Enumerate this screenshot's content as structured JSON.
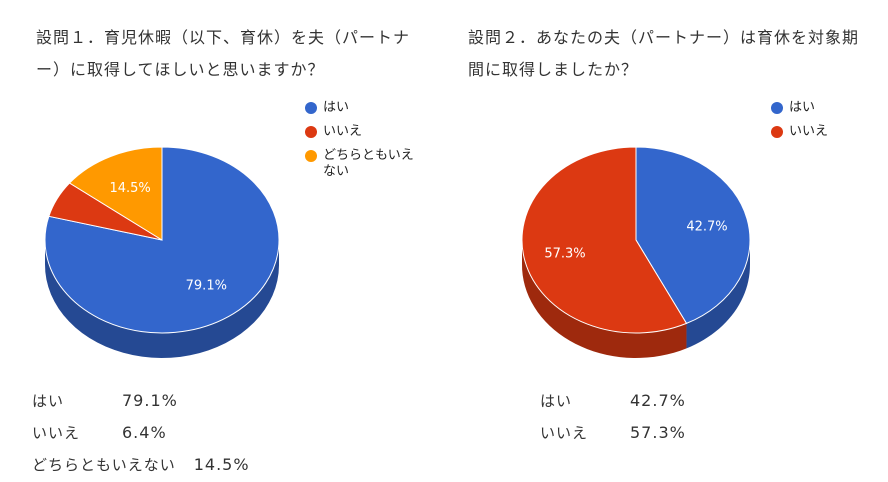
{
  "chart_data": [
    {
      "type": "pie",
      "title": "設問１．育児休暇（以下、育休）を夫（パートナー）に取得してほしいと思いますか？",
      "categories": [
        "はい",
        "いいえ",
        "どちらともいえない"
      ],
      "values": [
        79.1,
        6.4,
        14.5
      ],
      "value_labels": [
        "79.1%",
        "",
        "14.5%"
      ],
      "colors": [
        "#3366cc",
        "#dc3912",
        "#ff9900"
      ],
      "legend": "right",
      "summary": [
        {
          "label": "はい",
          "value": "79.1%"
        },
        {
          "label": "いいえ",
          "value": "6.4%"
        },
        {
          "label": "どちらともいえない",
          "value": "14.5%"
        }
      ]
    },
    {
      "type": "pie",
      "title": "設問２．あなたの夫（パートナー）は育休を対象期間に取得しましたか？",
      "categories": [
        "はい",
        "いいえ"
      ],
      "values": [
        42.7,
        57.3
      ],
      "value_labels": [
        "42.7%",
        "57.3%"
      ],
      "colors": [
        "#3366cc",
        "#dc3912"
      ],
      "legend": "right",
      "summary": [
        {
          "label": "はい",
          "value": "42.7%"
        },
        {
          "label": "いいえ",
          "value": "57.3%"
        }
      ]
    }
  ]
}
